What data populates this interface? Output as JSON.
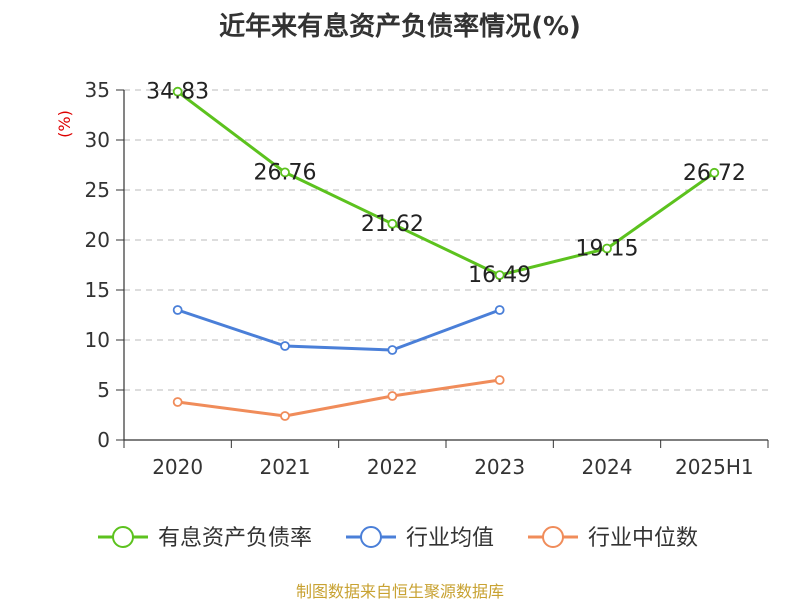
{
  "title": "近年来有息资产负债率情况(%)",
  "source_note": "制图数据来自恒生聚源数据库",
  "colors": {
    "series": [
      "#5cc21e",
      "#4a7fd8",
      "#f08c5a"
    ],
    "axis": "#333333",
    "grid": "#bbbbbb",
    "unit": "#dd0000",
    "source": "#c8a232"
  },
  "chart_data": {
    "type": "line",
    "title": "近年来有息资产负债率情况(%)",
    "unit_label": "(%)",
    "categories": [
      "2020",
      "2021",
      "2022",
      "2023",
      "2024",
      "2025H1"
    ],
    "ylim": [
      0,
      35
    ],
    "yticks": [
      0,
      5,
      10,
      15,
      20,
      25,
      30,
      35
    ],
    "grid": "horizontal dashed",
    "legend_position": "bottom",
    "series": [
      {
        "name": "有息资产负债率",
        "values": [
          34.83,
          26.76,
          21.62,
          16.49,
          19.15,
          26.72
        ],
        "labels": [
          "34.83",
          "26.76",
          "21.62",
          "16.49",
          "19.15",
          "26.72"
        ]
      },
      {
        "name": "行业均值",
        "values": [
          13.0,
          9.4,
          9.0,
          13.0,
          null,
          null
        ]
      },
      {
        "name": "行业中位数",
        "values": [
          3.8,
          2.4,
          4.4,
          6.0,
          null,
          null
        ]
      }
    ]
  }
}
